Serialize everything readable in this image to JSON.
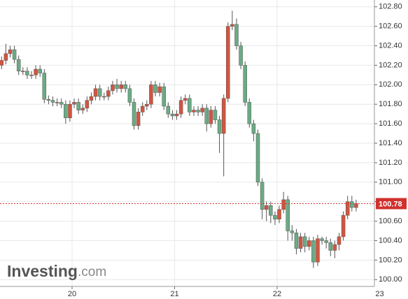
{
  "chart_data": {
    "type": "candlestick",
    "x": [
      19.3125,
      19.3542,
      19.3958,
      19.4375,
      19.4792,
      19.5208,
      19.5625,
      19.6042,
      19.6458,
      19.6875,
      19.7292,
      19.7708,
      19.8125,
      19.8542,
      19.8958,
      19.9375,
      19.9792,
      20.0208,
      20.0625,
      20.1042,
      20.1458,
      20.1875,
      20.2292,
      20.2708,
      20.3125,
      20.3542,
      20.3958,
      20.4375,
      20.4792,
      20.5208,
      20.5625,
      20.6042,
      20.6458,
      20.6875,
      20.7292,
      20.7708,
      20.8125,
      20.8542,
      20.8958,
      20.9375,
      20.9792,
      21.0208,
      21.0625,
      21.1042,
      21.1458,
      21.1875,
      21.2292,
      21.2708,
      21.3125,
      21.3542,
      21.3958,
      21.4375,
      21.4792,
      21.5208,
      21.5625,
      21.6042,
      21.6458,
      21.6875,
      21.7292,
      21.7708,
      21.8125,
      21.8542,
      21.8958,
      21.9375,
      21.9792,
      22.0208,
      22.0625,
      22.1042,
      22.1458,
      22.1875,
      22.2292,
      22.2708,
      22.3125,
      22.3542,
      22.3958,
      22.4375,
      22.4792,
      22.5208,
      22.5625,
      22.6042,
      22.6458,
      22.6875,
      22.7292,
      22.7708
    ],
    "open": [
      102.2,
      102.25,
      102.32,
      102.36,
      102.26,
      102.14,
      102.14,
      102.1,
      102.1,
      102.16,
      102.12,
      101.85,
      101.84,
      101.82,
      101.82,
      101.8,
      101.66,
      101.8,
      101.82,
      101.74,
      101.76,
      101.84,
      101.88,
      101.96,
      101.88,
      101.88,
      101.94,
      102.0,
      101.96,
      102.0,
      101.96,
      101.82,
      101.58,
      101.72,
      101.78,
      101.8,
      102.0,
      101.92,
      101.98,
      101.78,
      101.7,
      101.68,
      101.7,
      101.84,
      101.86,
      101.72,
      101.74,
      101.72,
      101.76,
      101.6,
      101.74,
      101.64,
      101.5,
      101.86,
      102.6,
      102.62,
      102.4,
      102.2,
      101.82,
      101.6,
      101.5,
      101.0,
      100.72,
      100.76,
      100.66,
      100.62,
      100.72,
      100.82,
      100.5,
      100.48,
      100.32,
      100.44,
      100.34,
      100.4,
      100.18,
      100.42,
      100.4,
      100.38,
      100.3,
      100.36,
      100.44,
      100.66,
      100.8,
      100.74
    ],
    "high": [
      102.29,
      102.42,
      102.4,
      102.4,
      102.3,
      102.18,
      102.18,
      102.14,
      102.2,
      102.2,
      102.16,
      101.89,
      101.88,
      101.86,
      101.86,
      101.84,
      101.84,
      101.86,
      101.86,
      101.8,
      101.88,
      101.92,
      102.0,
      102.0,
      101.92,
      101.98,
      102.04,
      102.06,
      102.04,
      102.04,
      102.0,
      101.86,
      101.76,
      101.82,
      101.84,
      102.04,
      102.04,
      102.02,
      102.02,
      101.82,
      101.74,
      101.74,
      101.88,
      101.9,
      101.9,
      101.78,
      101.78,
      101.8,
      101.8,
      101.78,
      101.78,
      101.68,
      101.9,
      102.64,
      102.76,
      102.68,
      102.44,
      102.24,
      101.86,
      101.64,
      101.54,
      101.04,
      100.8,
      100.8,
      100.7,
      100.76,
      100.9,
      100.86,
      100.56,
      100.52,
      100.48,
      100.48,
      100.44,
      100.44,
      100.46,
      100.44,
      100.44,
      100.42,
      100.4,
      100.48,
      100.7,
      100.86,
      100.86,
      100.82
    ],
    "low": [
      102.16,
      102.21,
      102.28,
      102.22,
      102.1,
      102.1,
      102.06,
      102.06,
      102.06,
      102.08,
      101.81,
      101.8,
      101.78,
      101.78,
      101.76,
      101.6,
      101.62,
      101.76,
      101.7,
      101.7,
      101.72,
      101.8,
      101.84,
      101.84,
      101.84,
      101.84,
      101.9,
      101.92,
      101.92,
      101.92,
      101.78,
      101.54,
      101.54,
      101.68,
      101.74,
      101.76,
      101.88,
      101.88,
      101.74,
      101.66,
      101.64,
      101.64,
      101.66,
      101.8,
      101.68,
      101.68,
      101.68,
      101.68,
      101.52,
      101.56,
      101.6,
      101.3,
      101.06,
      101.82,
      102.56,
      102.36,
      102.16,
      101.78,
      101.56,
      101.42,
      100.96,
      100.62,
      100.6,
      100.58,
      100.56,
      100.58,
      100.68,
      100.4,
      100.4,
      100.26,
      100.28,
      100.28,
      100.3,
      100.12,
      100.14,
      100.36,
      100.32,
      100.24,
      100.22,
      100.3,
      100.4,
      100.62,
      100.7,
      100.7
    ],
    "close": [
      102.25,
      102.32,
      102.36,
      102.26,
      102.14,
      102.14,
      102.1,
      102.1,
      102.16,
      102.12,
      101.85,
      101.84,
      101.82,
      101.82,
      101.8,
      101.66,
      101.8,
      101.82,
      101.74,
      101.76,
      101.84,
      101.88,
      101.96,
      101.88,
      101.88,
      101.94,
      102.0,
      101.96,
      102.0,
      101.96,
      101.82,
      101.58,
      101.72,
      101.78,
      101.8,
      102.0,
      101.92,
      101.98,
      101.78,
      101.7,
      101.68,
      101.7,
      101.84,
      101.86,
      101.72,
      101.74,
      101.72,
      101.76,
      101.6,
      101.74,
      101.64,
      101.5,
      101.86,
      102.6,
      102.62,
      102.4,
      102.2,
      101.82,
      101.6,
      101.5,
      101.0,
      100.72,
      100.76,
      100.66,
      100.62,
      100.72,
      100.82,
      100.5,
      100.48,
      100.32,
      100.44,
      100.34,
      100.4,
      100.18,
      100.42,
      100.4,
      100.38,
      100.3,
      100.36,
      100.44,
      100.66,
      100.8,
      100.74,
      100.78
    ],
    "up_color": "#d2553f",
    "down_color": "#6aab85",
    "xlim": [
      19.297,
      22.949
    ],
    "xticks": [
      20,
      21,
      22,
      23
    ],
    "ylim": [
      99.93,
      102.87
    ],
    "yticks": [
      {
        "value": 100.0,
        "label": "100.00"
      },
      {
        "value": 100.2,
        "label": "100.20"
      },
      {
        "value": 100.4,
        "label": "100.40"
      },
      {
        "value": 100.6,
        "label": "100.60"
      },
      {
        "value": 100.8,
        "label": "100.80"
      },
      {
        "value": 101.0,
        "label": "101.00"
      },
      {
        "value": 101.2,
        "label": "101.20"
      },
      {
        "value": 101.4,
        "label": "101.40"
      },
      {
        "value": 101.6,
        "label": "101.60"
      },
      {
        "value": 101.8,
        "label": "101.80"
      },
      {
        "value": 102.0,
        "label": "102.00"
      },
      {
        "value": 102.2,
        "label": "102.20"
      },
      {
        "value": 102.4,
        "label": "102.40"
      },
      {
        "value": 102.6,
        "label": "102.60"
      },
      {
        "value": 102.8,
        "label": "102.80"
      }
    ],
    "grid": true,
    "last_price": {
      "value": 100.78,
      "label": "100.78",
      "color": "#d0312d"
    },
    "watermark": {
      "brand": "Investing",
      "suffix": ".com"
    }
  }
}
